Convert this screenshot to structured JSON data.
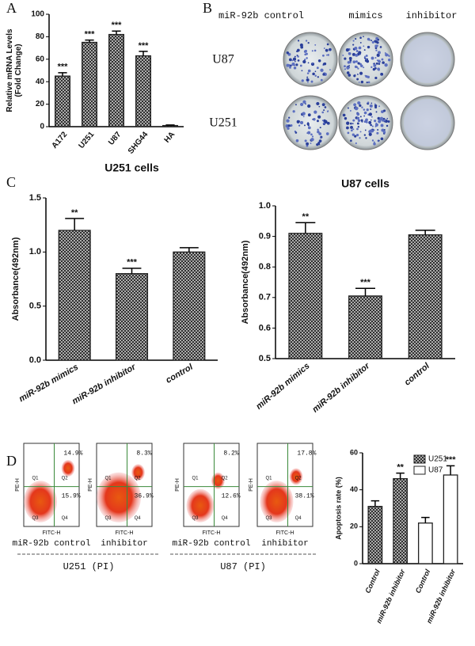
{
  "panel_labels": [
    "A",
    "B",
    "C",
    "D"
  ],
  "colony_assay": {
    "columns": [
      "miR-92b control",
      "mimics",
      "inhibitor"
    ],
    "rows": [
      "U87",
      "U251"
    ]
  },
  "flow_cytometry": {
    "y_axis": "PE-H",
    "x_axis": "FITC-H",
    "quadrants": [
      "Q1",
      "Q2",
      "Q3",
      "Q4"
    ],
    "plots": [
      {
        "caption": "miR-92b control",
        "upper_right": "14.9%",
        "lower_right": "15.9%"
      },
      {
        "caption": "inhibitor",
        "upper_right": "8.3%",
        "lower_right": "36.9%"
      },
      {
        "caption": "miR-92b control",
        "upper_right": "8.2%",
        "lower_right": "12.6%"
      },
      {
        "caption": "inhibitor",
        "upper_right": "17.8%",
        "lower_right": "38.1%"
      }
    ],
    "groups": [
      "U251 (PI)",
      "U87 (PI)"
    ]
  },
  "chart_data": [
    {
      "type": "bar",
      "ylabel": [
        "Relative mRNA Levels",
        "(Fold Change)"
      ],
      "categories": [
        "A172",
        "U251",
        "U87",
        "SHG44",
        "HA"
      ],
      "values": [
        45,
        75,
        82,
        63,
        1
      ],
      "errors": [
        3,
        2,
        3,
        4,
        0.5
      ],
      "annotations": [
        "***",
        "***",
        "***",
        "***",
        null
      ],
      "color": "#222",
      "fill_pattern": "crosshatch",
      "ylim": [
        0,
        100
      ],
      "yticks": [
        0,
        20,
        40,
        60,
        80,
        100
      ]
    },
    {
      "type": "bar",
      "title": "U251 cells",
      "ylabel": "Absorbance(492nm)",
      "categories": [
        "miR-92b mimics",
        "miR-92b inhibitor",
        "control"
      ],
      "values": [
        1.2,
        0.8,
        1.0
      ],
      "errors": [
        0.11,
        0.05,
        0.04
      ],
      "annotations": [
        "**",
        "***",
        null
      ],
      "color": "#222",
      "fill_pattern": "crosshatch",
      "ylim": [
        0,
        1.5
      ],
      "yticks": [
        {
          "value": 0,
          "label": "0.0"
        },
        0.5,
        {
          "value": 1,
          "label": "1.0"
        },
        1.5
      ]
    },
    {
      "type": "bar",
      "title": "U87 cells",
      "ylabel": "Absorbance(492nm)",
      "categories": [
        "miR-92b mimics",
        "miR-92b inhibitor",
        "control"
      ],
      "values": [
        0.91,
        0.705,
        0.905
      ],
      "errors": [
        0.035,
        0.025,
        0.015
      ],
      "annotations": [
        "**",
        "***",
        null
      ],
      "color": "#222",
      "fill_pattern": "crosshatch",
      "ylim": [
        0.5,
        1.0
      ],
      "yticks": [
        0.5,
        0.6,
        0.7,
        0.8,
        0.9,
        {
          "value": 1,
          "label": "1.0"
        }
      ]
    },
    {
      "type": "bar",
      "ylabel": "Apoptosis rate (%)",
      "categories": [
        "Control",
        "miR-92b inhibitor",
        "Control",
        "miR-92b inhibitor"
      ],
      "series": [
        {
          "name": "U251",
          "color": "#222",
          "fill_pattern": "crosshatch",
          "values": [
            31,
            46,
            null,
            null
          ],
          "errors": [
            3,
            3,
            null,
            null
          ],
          "annotations": [
            null,
            "**",
            null,
            null
          ]
        },
        {
          "name": "U87",
          "color": "#222",
          "fill_pattern": "none",
          "values": [
            null,
            null,
            22,
            48
          ],
          "errors": [
            null,
            null,
            3,
            5
          ],
          "annotations": [
            null,
            null,
            null,
            "***"
          ]
        }
      ],
      "legend": "upper right",
      "ylim": [
        0,
        60
      ],
      "yticks": [
        0,
        20,
        40,
        60
      ]
    }
  ]
}
